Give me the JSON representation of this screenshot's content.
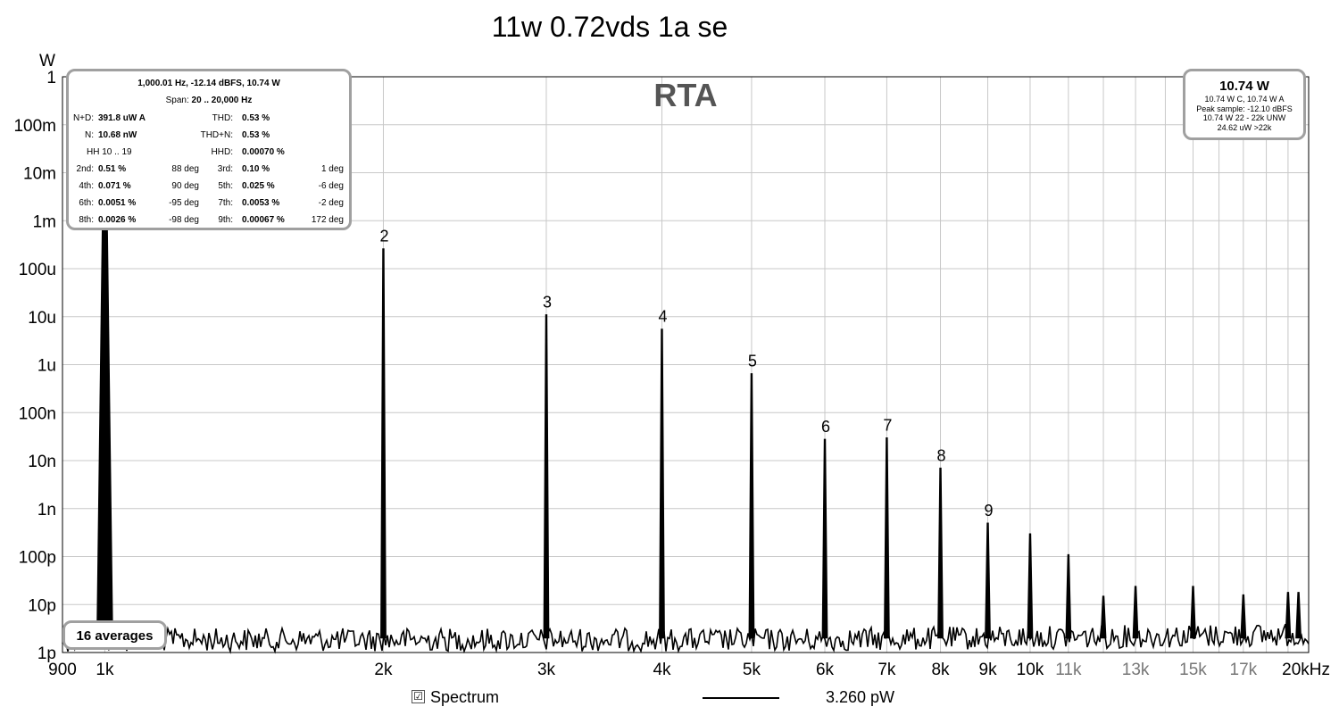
{
  "title": "11w 0.72vds 1a se",
  "chart_data": {
    "type": "line",
    "title": "11w 0.72vds 1a se",
    "overlay_label": "RTA",
    "y_unit_label": "W",
    "y_scale": "log",
    "ylim": [
      1e-12,
      1
    ],
    "x_scale": "log",
    "xlim": [
      900,
      20000
    ],
    "y_ticks": [
      {
        "value": 1,
        "label": "1"
      },
      {
        "value": 0.1,
        "label": "100m"
      },
      {
        "value": 0.01,
        "label": "10m"
      },
      {
        "value": 0.001,
        "label": "1m"
      },
      {
        "value": 0.0001,
        "label": "100u"
      },
      {
        "value": 1e-05,
        "label": "10u"
      },
      {
        "value": 1e-06,
        "label": "1u"
      },
      {
        "value": 1e-07,
        "label": "100n"
      },
      {
        "value": 1e-08,
        "label": "10n"
      },
      {
        "value": 1e-09,
        "label": "1n"
      },
      {
        "value": 1e-10,
        "label": "100p"
      },
      {
        "value": 1e-11,
        "label": "10p"
      },
      {
        "value": 1e-12,
        "label": "1p"
      }
    ],
    "x_ticks": [
      {
        "value": 900,
        "label": "900",
        "minor": false
      },
      {
        "value": 1000,
        "label": "1k",
        "minor": false
      },
      {
        "value": 2000,
        "label": "2k",
        "minor": false
      },
      {
        "value": 3000,
        "label": "3k",
        "minor": false
      },
      {
        "value": 4000,
        "label": "4k",
        "minor": false
      },
      {
        "value": 5000,
        "label": "5k",
        "minor": false
      },
      {
        "value": 6000,
        "label": "6k",
        "minor": false
      },
      {
        "value": 7000,
        "label": "7k",
        "minor": false
      },
      {
        "value": 8000,
        "label": "8k",
        "minor": false
      },
      {
        "value": 9000,
        "label": "9k",
        "minor": false
      },
      {
        "value": 10000,
        "label": "10k",
        "minor": false
      },
      {
        "value": 11000,
        "label": "11k",
        "minor": true
      },
      {
        "value": 13000,
        "label": "13k",
        "minor": true
      },
      {
        "value": 15000,
        "label": "15k",
        "minor": true
      },
      {
        "value": 17000,
        "label": "17k",
        "minor": true
      },
      {
        "value": 20000,
        "label": "20kHz",
        "minor": false
      }
    ],
    "noise_floor_w": 2e-12,
    "peaks": [
      {
        "freq": 1000,
        "value": 10.74
      },
      {
        "freq": 2000,
        "value": 0.00026,
        "label": "2"
      },
      {
        "freq": 3000,
        "value": 1.1e-05,
        "label": "3"
      },
      {
        "freq": 4000,
        "value": 5.5e-06,
        "label": "4"
      },
      {
        "freq": 5000,
        "value": 6.5e-07,
        "label": "5"
      },
      {
        "freq": 6000,
        "value": 2.8e-08,
        "label": "6"
      },
      {
        "freq": 7000,
        "value": 3e-08,
        "label": "7"
      },
      {
        "freq": 8000,
        "value": 7e-09,
        "label": "8"
      },
      {
        "freq": 9000,
        "value": 5e-10,
        "label": "9"
      },
      {
        "freq": 10000,
        "value": 3e-10
      },
      {
        "freq": 11000,
        "value": 1.1e-10
      },
      {
        "freq": 12000,
        "value": 1.5e-11
      },
      {
        "freq": 13000,
        "value": 2.4e-11
      },
      {
        "freq": 15000,
        "value": 2.4e-11
      },
      {
        "freq": 17000,
        "value": 1.6e-11
      },
      {
        "freq": 19000,
        "value": 1.8e-11
      },
      {
        "freq": 19500,
        "value": 1.8e-11
      }
    ],
    "legend": {
      "checked": true,
      "checkbox_glyph": "☑",
      "label": "Spectrum",
      "value": "3.260 pW",
      "color": "#000000"
    },
    "grid": true,
    "grid_color": "#c8c8c8"
  },
  "stats": {
    "header": "1,000.01 Hz, -12.14 dBFS, 10.74 W",
    "span_label": "Span:",
    "span_value": "20 .. 20,000 Hz",
    "nd_label": "N+D:",
    "nd_value": "391.8 uW A",
    "thd_label": "THD:",
    "thd_value": "0.53 %",
    "n_label": "N:",
    "n_value": "10.68 nW",
    "thdn_label": "THD+N:",
    "thdn_value": "0.53 %",
    "hh_label": "HH 10 .. 19",
    "hhd_label": "HHD:",
    "hhd_value": "0.00070 %",
    "harmonics": [
      {
        "l_label": "2nd:",
        "l_value": "0.51 %",
        "l_deg": "88 deg",
        "r_label": "3rd:",
        "r_value": "0.10 %",
        "r_deg": "1 deg"
      },
      {
        "l_label": "4th:",
        "l_value": "0.071 %",
        "l_deg": "90 deg",
        "r_label": "5th:",
        "r_value": "0.025 %",
        "r_deg": "-6 deg"
      },
      {
        "l_label": "6th:",
        "l_value": "0.0051 %",
        "l_deg": "-95 deg",
        "r_label": "7th:",
        "r_value": "0.0053 %",
        "r_deg": "-2 deg"
      },
      {
        "l_label": "8th:",
        "l_value": "0.0026 %",
        "l_deg": "-98 deg",
        "r_label": "9th:",
        "r_value": "0.00067 %",
        "r_deg": "172 deg"
      }
    ]
  },
  "power": {
    "main": "10.74 W",
    "line1": "10.74 W C, 10.74 W A",
    "line2": "Peak sample: -12.10 dBFS",
    "line3": "10.74 W 22 - 22k UNW",
    "line4": "24.62 uW >22k"
  },
  "averages": "16 averages"
}
